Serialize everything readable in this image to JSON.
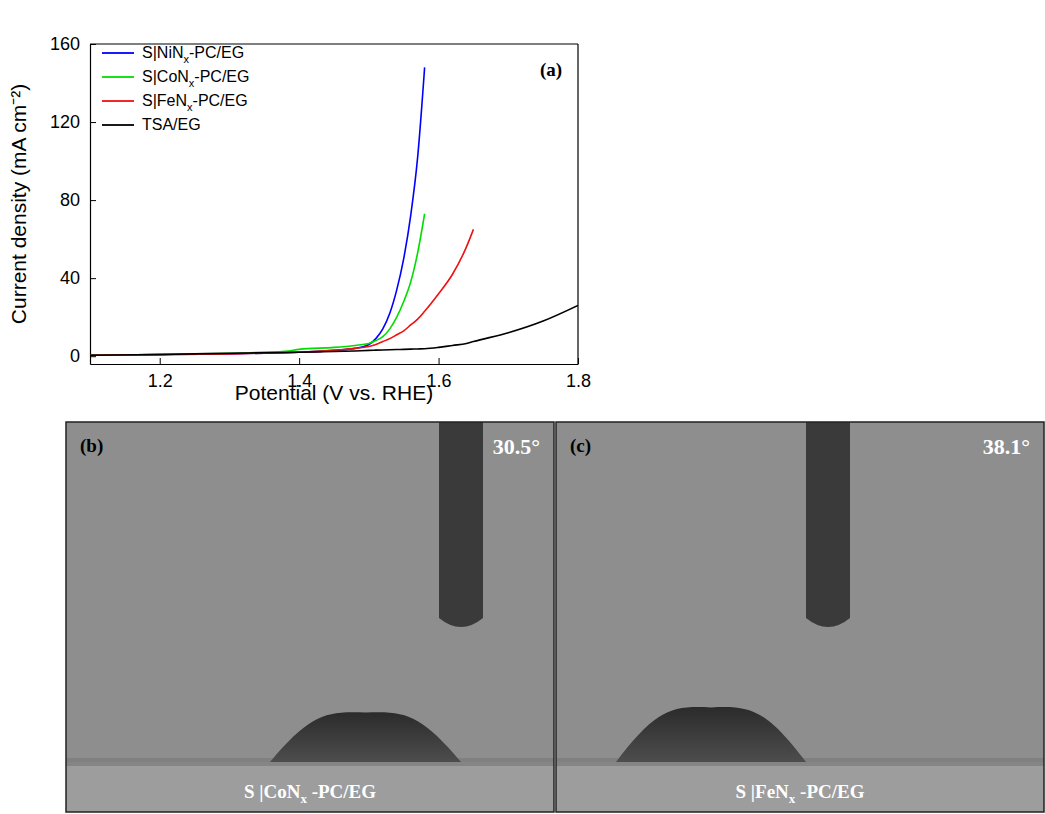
{
  "chart_data": {
    "type": "line",
    "annotations": [
      "(a)"
    ],
    "x_label": "Potential (V vs. RHE)",
    "y_label": "Current density (mA cm⁻²)",
    "x": [
      1.1,
      1.2,
      1.3,
      1.38,
      1.4,
      1.45,
      1.48,
      1.5,
      1.51,
      1.52,
      1.53,
      1.54,
      1.55,
      1.56,
      1.57,
      1.58,
      1.6,
      1.62,
      1.64,
      1.65,
      1.7,
      1.75,
      1.8
    ],
    "series": [
      {
        "name": "S|NiNx-PC/EG",
        "color": "#0000ff",
        "values": [
          0.5,
          0.8,
          1.2,
          1.8,
          2,
          3,
          4,
          6,
          9,
          14,
          22,
          34,
          50,
          72,
          102,
          148,
          null,
          null,
          null,
          null,
          null,
          null,
          null
        ]
      },
      {
        "name": "S|CoNx-PC/EG",
        "color": "#00dd00",
        "values": [
          0.5,
          0.9,
          1.5,
          2.5,
          3.5,
          4.5,
          5.5,
          6.5,
          8,
          10,
          14,
          20,
          28,
          38,
          53,
          73,
          null,
          null,
          null,
          null,
          null,
          null,
          null
        ]
      },
      {
        "name": "S|FeNx-PC/EG",
        "color": "#ee1111",
        "values": [
          0.5,
          0.8,
          1.2,
          1.8,
          2,
          3,
          4,
          5,
          6,
          7.5,
          9,
          11,
          13,
          16,
          19,
          23,
          32,
          42,
          56,
          65,
          null,
          null,
          null
        ]
      },
      {
        "name": "TSA/EG",
        "color": "#000000",
        "values": [
          0.5,
          0.9,
          1.5,
          1.9,
          2,
          2.4,
          2.7,
          3,
          3.1,
          3.2,
          3.3,
          3.4,
          3.5,
          3.6,
          3.7,
          3.8,
          4.5,
          5.5,
          6.5,
          7.5,
          12,
          18,
          26
        ]
      }
    ],
    "xlim": [
      1.1,
      1.8
    ],
    "xticks": [
      1.2,
      1.4,
      1.6,
      1.8
    ],
    "ylim": [
      -4,
      160
    ],
    "yticks": [
      0,
      40,
      80,
      120,
      160
    ],
    "legend": "upper left",
    "grid": false
  },
  "photos": [
    {
      "letter": "(b)",
      "angle": "30.5°",
      "label": "S |CoNx -PC/EG"
    },
    {
      "letter": "(c)",
      "angle": "38.1°",
      "label": "S |FeNx -PC/EG"
    }
  ]
}
